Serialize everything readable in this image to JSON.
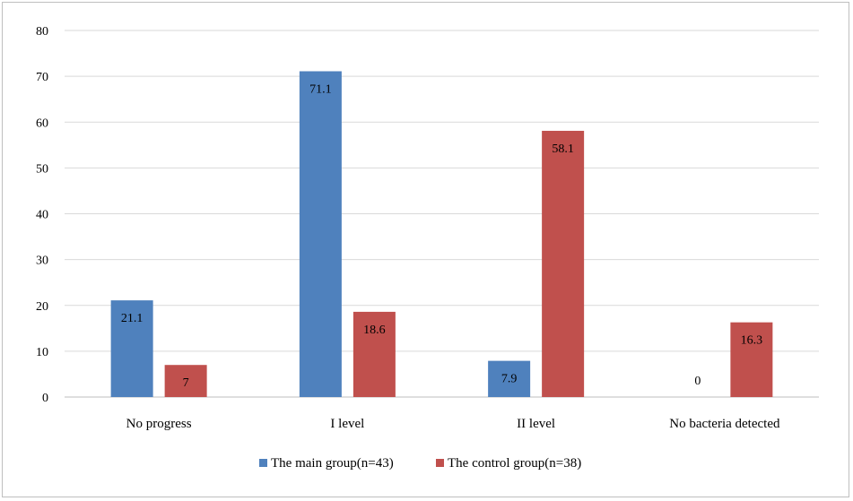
{
  "chart_data": {
    "type": "bar",
    "categories": [
      "No progress",
      "I level",
      "II level",
      "No bacteria detected"
    ],
    "series": [
      {
        "name": "The main group(n=43)",
        "values": [
          21.1,
          71.1,
          7.9,
          0
        ],
        "color": "#4f81bd"
      },
      {
        "name": "The control group(n=38)",
        "values": [
          7,
          18.6,
          58.1,
          16.3
        ],
        "color": "#c0504d"
      }
    ],
    "ylim": [
      0,
      80
    ],
    "yticks": [
      0,
      10,
      20,
      30,
      40,
      50,
      60,
      70,
      80
    ],
    "grid": true,
    "legend_position": "bottom"
  }
}
